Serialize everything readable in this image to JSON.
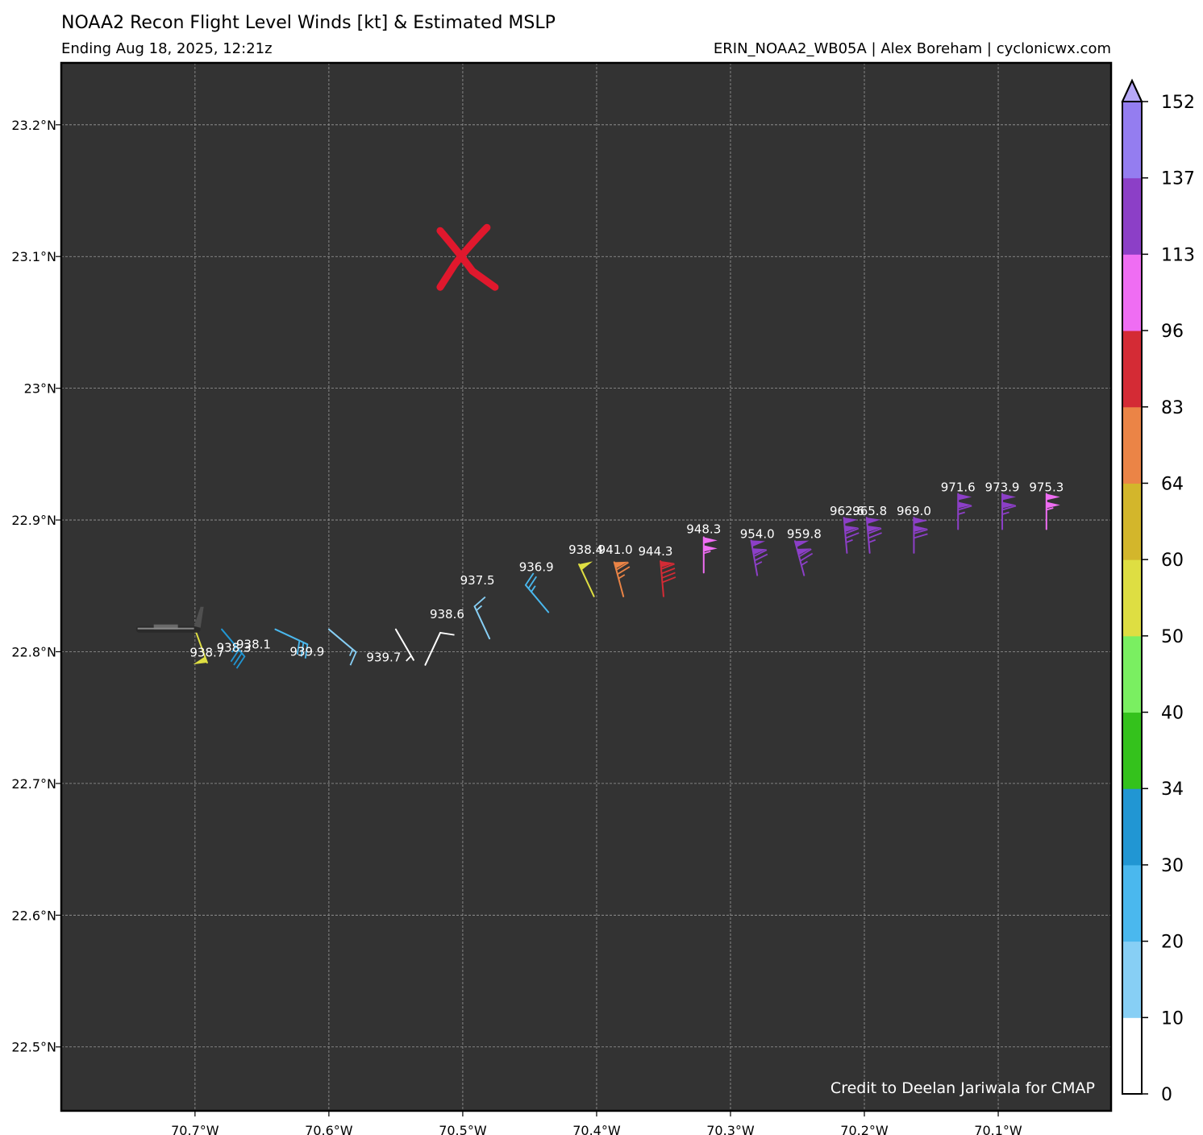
{
  "header": {
    "title": "NOAA2 Recon Flight Level Winds [kt] & Estimated MSLP",
    "subtitle_left": "Ending Aug 18, 2025, 12:21z",
    "subtitle_right": "ERIN_NOAA2_WB05A | Alex Boreham | cyclonicwx.com"
  },
  "credit": "Credit to Deelan Jariwala for CMAP",
  "colors": {
    "map_background": "#333333",
    "grid": "#9a9a9a",
    "center_marker": "#e0182d",
    "text_on_map": "#ffffff"
  },
  "chart_data": {
    "type": "scatter",
    "title": "NOAA2 Recon Flight Level Winds [kt] & Estimated MSLP",
    "xlim": [
      -70.7999,
      -70.0157
    ],
    "ylim": [
      22.4515,
      23.247
    ],
    "x_ticks": [
      -70.7,
      -70.6,
      -70.5,
      -70.4,
      -70.3,
      -70.2,
      -70.1
    ],
    "x_tick_labels": [
      "70.7°W",
      "70.6°W",
      "70.5°W",
      "70.4°W",
      "70.3°W",
      "70.2°W",
      "70.1°W"
    ],
    "y_ticks": [
      22.5,
      22.6,
      22.7,
      22.8,
      22.9,
      23.0,
      23.1,
      23.2
    ],
    "y_tick_labels": [
      "22.5°N",
      "22.6°N",
      "22.7°N",
      "22.8°N",
      "22.9°N",
      "23°N",
      "23.1°N",
      "23.2°N"
    ],
    "grid": true,
    "center_estimate": {
      "lon": -70.5,
      "lat": 23.1,
      "marker": "X"
    },
    "aircraft_position": {
      "lon": -70.72,
      "lat": 22.817
    },
    "colorbar": {
      "boundaries": [
        0,
        10,
        20,
        30,
        34,
        40,
        50,
        60,
        64,
        83,
        96,
        113,
        137,
        152
      ],
      "tick_labels": [
        "0",
        "10",
        "20",
        "30",
        "34",
        "40",
        "50",
        "60",
        "64",
        "83",
        "96",
        "113",
        "137",
        "152"
      ],
      "colors": [
        "#ffffff",
        "#87cff5",
        "#4ab8ee",
        "#2196d3",
        "#34c21c",
        "#7aef61",
        "#dede42",
        "#d3b62b",
        "#eb8446",
        "#d42b35",
        "#ef6df3",
        "#8c3fc7",
        "#947df0"
      ],
      "extend_color": "#b6a8f7",
      "extend": "max"
    },
    "points": [
      {
        "lon": -70.7,
        "lat": 22.817,
        "wind_kt": 51,
        "dir_from": 160,
        "mslp": "938.7"
      },
      {
        "lon": -70.68,
        "lat": 22.817,
        "wind_kt": 33,
        "dir_from": 140,
        "mslp": "938.3"
      },
      {
        "lon": -70.64,
        "lat": 22.817,
        "wind_kt": 28,
        "dir_from": 115,
        "mslp": "938.1"
      },
      {
        "lon": -70.6,
        "lat": 22.817,
        "wind_kt": 14,
        "dir_from": 130,
        "mslp": "939.9"
      },
      {
        "lon": -70.55,
        "lat": 22.817,
        "wind_kt": 7,
        "dir_from": 150,
        "mslp": "939.7"
      },
      {
        "lon": -70.528,
        "lat": 22.79,
        "wind_kt": 9,
        "dir_from": 25,
        "mslp": "938.6"
      },
      {
        "lon": -70.48,
        "lat": 22.81,
        "wind_kt": 14,
        "dir_from": 335,
        "mslp": "937.5"
      },
      {
        "lon": -70.436,
        "lat": 22.83,
        "wind_kt": 26,
        "dir_from": 320,
        "mslp": "936.9"
      },
      {
        "lon": -70.402,
        "lat": 22.842,
        "wind_kt": 52,
        "dir_from": 335,
        "mslp": "938.4"
      },
      {
        "lon": -70.38,
        "lat": 22.842,
        "wind_kt": 73,
        "dir_from": 345,
        "mslp": "941.0"
      },
      {
        "lon": -70.35,
        "lat": 22.842,
        "wind_kt": 90,
        "dir_from": 355,
        "mslp": "944.3"
      },
      {
        "lon": -70.32,
        "lat": 22.86,
        "wind_kt": 103,
        "dir_from": 0,
        "mslp": "948.3"
      },
      {
        "lon": -70.28,
        "lat": 22.858,
        "wind_kt": 126,
        "dir_from": 350,
        "mslp": "954.0"
      },
      {
        "lon": -70.245,
        "lat": 22.858,
        "wind_kt": 126,
        "dir_from": 345,
        "mslp": "959.8"
      },
      {
        "lon": -70.213,
        "lat": 22.875,
        "wind_kt": 124,
        "dir_from": 355,
        "mslp": "962.6"
      },
      {
        "lon": -70.196,
        "lat": 22.875,
        "wind_kt": 124,
        "dir_from": 355,
        "mslp": "965.8"
      },
      {
        "lon": -70.163,
        "lat": 22.875,
        "wind_kt": 119,
        "dir_from": 0,
        "mslp": "969.0"
      },
      {
        "lon": -70.13,
        "lat": 22.893,
        "wind_kt": 116,
        "dir_from": 0,
        "mslp": "971.6"
      },
      {
        "lon": -70.097,
        "lat": 22.893,
        "wind_kt": 116,
        "dir_from": 0,
        "mslp": "973.9"
      },
      {
        "lon": -70.064,
        "lat": 22.893,
        "wind_kt": 105,
        "dir_from": 0,
        "mslp": "975.3"
      }
    ]
  }
}
